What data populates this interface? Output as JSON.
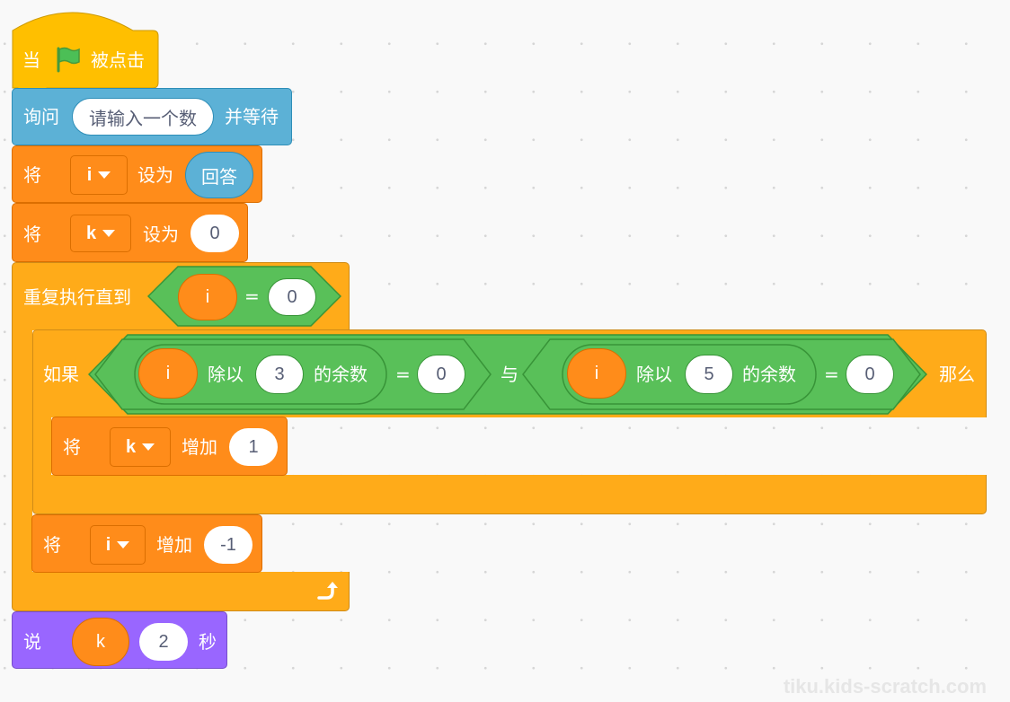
{
  "script": {
    "hat": {
      "prefix": "当",
      "suffix": "被点击",
      "icon": "green-flag-icon"
    },
    "ask": {
      "label": "询问",
      "input": "请输入一个数",
      "suffix": "并等待"
    },
    "set_i": {
      "verb": "将",
      "var": "i",
      "mid": "设为",
      "value": "回答"
    },
    "set_k": {
      "verb": "将",
      "var": "k",
      "mid": "设为",
      "value": "0"
    },
    "repeat": {
      "label": "重复执行直到",
      "var": "i",
      "op": "=",
      "value": "0",
      "loop_icon": "loop-arrow-icon"
    },
    "if": {
      "label": "如果",
      "left": {
        "var": "i",
        "mod": "除以",
        "divisor": "3",
        "rem": "的余数",
        "op": "=",
        "value": "0"
      },
      "and": "与",
      "right": {
        "var": "i",
        "mod": "除以",
        "divisor": "5",
        "rem": "的余数",
        "op": "=",
        "value": "0"
      },
      "then": "那么"
    },
    "change_k": {
      "verb": "将",
      "var": "k",
      "mid": "增加",
      "value": "1"
    },
    "change_i": {
      "verb": "将",
      "var": "i",
      "mid": "增加",
      "value": "-1"
    },
    "say": {
      "label": "说",
      "var": "k",
      "secs": "2",
      "unit": "秒"
    }
  },
  "watermark": "tiku.kids-scratch.com",
  "colors": {
    "events": "#ffbf00",
    "sensing": "#5cb1d6",
    "variables": "#ff8c1a",
    "control": "#ffab19",
    "operators": "#59c059",
    "looks": "#9966ff",
    "canvas": "#f9f9f9"
  }
}
